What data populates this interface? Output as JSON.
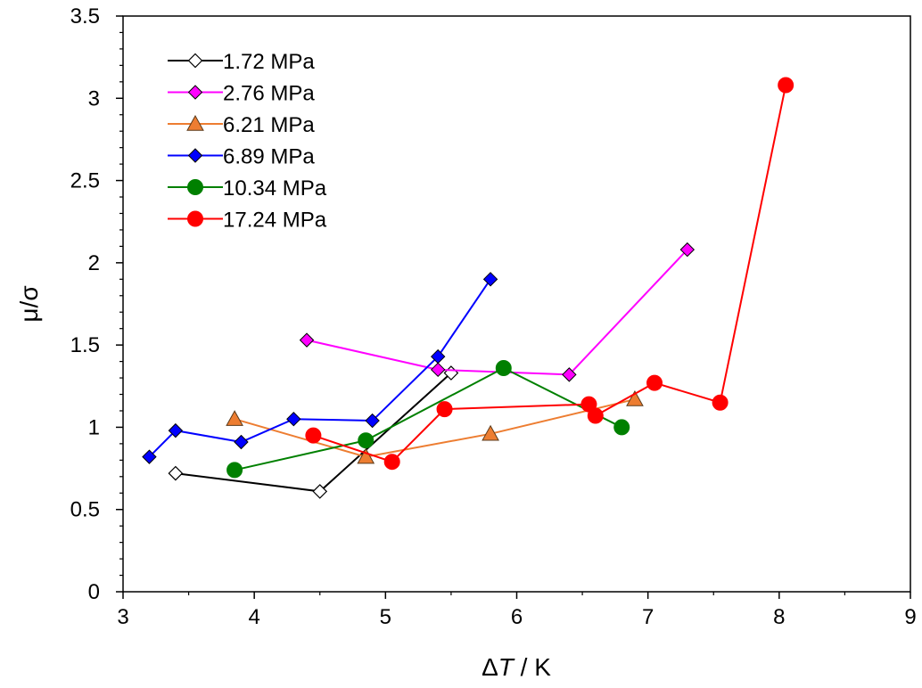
{
  "chart_data": {
    "type": "scatter",
    "xlabel": {
      "prefix": "Δ",
      "var": "T",
      "suffix": " / K"
    },
    "ylabel": "μ/σ",
    "xlim": [
      3,
      9
    ],
    "ylim": [
      0,
      3.5
    ],
    "xticks": [
      "3",
      "4",
      "5",
      "6",
      "7",
      "8",
      "9"
    ],
    "yticks": [
      "0",
      "0.5",
      "1",
      "1.5",
      "2",
      "2.5",
      "3",
      "3.5"
    ],
    "grid": false,
    "legend_position": "top-left",
    "series": [
      {
        "name": "1.72 MPa",
        "color": "#000000",
        "marker": "diamond-open",
        "x": [
          3.4,
          4.5,
          5.5
        ],
        "y": [
          0.72,
          0.61,
          1.33
        ]
      },
      {
        "name": "2.76 MPa",
        "color": "#ff00ff",
        "marker": "diamond",
        "x": [
          4.4,
          5.4,
          6.4,
          7.3
        ],
        "y": [
          1.53,
          1.35,
          1.32,
          2.08
        ]
      },
      {
        "name": "6.21 MPa",
        "color": "#ed7d31",
        "marker": "triangle",
        "x": [
          3.85,
          4.85,
          5.8,
          6.9
        ],
        "y": [
          1.05,
          0.82,
          0.96,
          1.17
        ]
      },
      {
        "name": "6.89 MPa",
        "color": "#0000ff",
        "marker": "diamond",
        "x": [
          3.2,
          3.4,
          3.9,
          4.3,
          4.9,
          5.4,
          5.8
        ],
        "y": [
          0.82,
          0.98,
          0.91,
          1.05,
          1.04,
          1.43,
          1.9
        ]
      },
      {
        "name": "10.34 MPa",
        "color": "#008000",
        "marker": "circle",
        "x": [
          3.85,
          4.85,
          5.9,
          6.8
        ],
        "y": [
          0.74,
          0.92,
          1.36,
          1.0
        ]
      },
      {
        "name": "17.24 MPa",
        "color": "#ff0000",
        "marker": "circle",
        "x": [
          4.45,
          5.05,
          5.45,
          6.55,
          6.6,
          7.05,
          7.55,
          8.05
        ],
        "y": [
          0.95,
          0.79,
          1.11,
          1.14,
          1.07,
          1.27,
          1.15,
          3.08
        ]
      }
    ]
  }
}
